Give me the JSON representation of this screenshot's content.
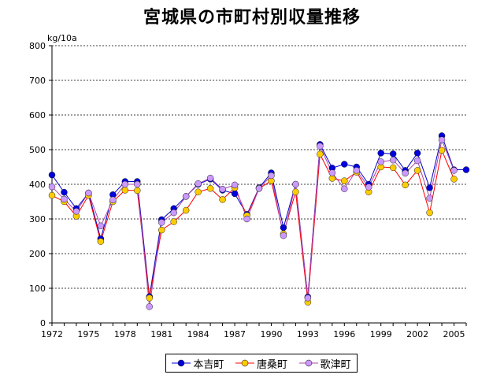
{
  "chart_data": {
    "type": "line",
    "title": "宮城県の市町村別収量推移",
    "ylabel": "kg/10a",
    "xlabel": "",
    "ylim": [
      0,
      800
    ],
    "yticks": [
      0,
      100,
      200,
      300,
      400,
      500,
      600,
      700,
      800
    ],
    "xlim": [
      1972,
      2006
    ],
    "xticks": [
      1972,
      1975,
      1978,
      1981,
      1984,
      1987,
      1990,
      1993,
      1996,
      1999,
      2002,
      2005
    ],
    "grid": "horizontal-dashed",
    "legend_position": "bottom",
    "x": [
      1972,
      1973,
      1974,
      1975,
      1976,
      1977,
      1978,
      1979,
      1980,
      1981,
      1982,
      1983,
      1984,
      1985,
      1986,
      1987,
      1988,
      1989,
      1990,
      1991,
      1992,
      1993,
      1994,
      1995,
      1996,
      1997,
      1998,
      1999,
      2000,
      2001,
      2002,
      2003,
      2004,
      2005,
      2006
    ],
    "series": [
      {
        "name": "本吉町",
        "color": "#0000cc",
        "marker_color": "#0000dd",
        "values": [
          427,
          377,
          330,
          375,
          243,
          370,
          408,
          408,
          76,
          298,
          330,
          365,
          400,
          415,
          383,
          373,
          313,
          390,
          433,
          275,
          400,
          75,
          515,
          447,
          458,
          450,
          400,
          490,
          488,
          440,
          490,
          390,
          540,
          442,
          442
        ]
      },
      {
        "name": "唐桑町",
        "color": "#ff0000",
        "marker_color": "#ffcc00",
        "values": [
          368,
          350,
          308,
          368,
          235,
          350,
          383,
          382,
          72,
          268,
          292,
          325,
          378,
          388,
          356,
          390,
          310,
          388,
          410,
          257,
          378,
          60,
          487,
          417,
          410,
          435,
          378,
          450,
          448,
          398,
          440,
          318,
          498,
          415,
          null
        ]
      },
      {
        "name": "歌津町",
        "color": "#aa44aa",
        "marker_color": "#cc99ff",
        "values": [
          393,
          357,
          322,
          375,
          280,
          355,
          400,
          400,
          47,
          290,
          318,
          365,
          402,
          418,
          386,
          398,
          300,
          388,
          425,
          252,
          400,
          72,
          510,
          433,
          387,
          440,
          392,
          465,
          470,
          432,
          468,
          360,
          528,
          440,
          null
        ]
      }
    ]
  }
}
